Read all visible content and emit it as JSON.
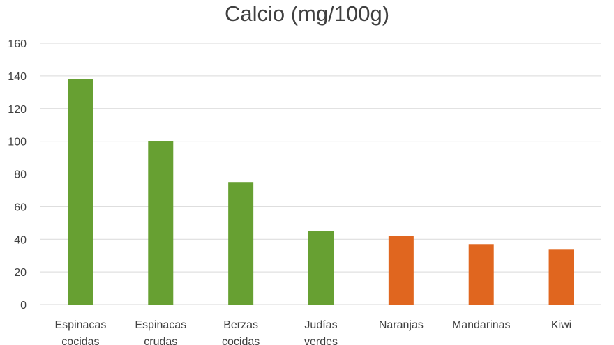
{
  "chart_data": {
    "type": "bar",
    "title": "Calcio (mg/100g)",
    "xlabel": "",
    "ylabel": "",
    "ylim": [
      0,
      160
    ],
    "yticks": [
      0,
      20,
      40,
      60,
      80,
      100,
      120,
      140,
      160
    ],
    "grid": true,
    "categories": [
      [
        "Espinacas",
        "cocidas"
      ],
      [
        "Espinacas",
        "crudas"
      ],
      [
        "Berzas",
        "cocidas"
      ],
      [
        "Judías",
        "verdes"
      ],
      [
        "Naranjas"
      ],
      [
        "Mandarinas"
      ],
      [
        "Kiwi"
      ]
    ],
    "values": [
      138,
      100,
      75,
      45,
      42,
      37,
      34
    ],
    "bar_colors": [
      "#67a032",
      "#67a032",
      "#67a032",
      "#67a032",
      "#e0661f",
      "#e0661f",
      "#e0661f"
    ],
    "gridline_color": "#d9d9d9"
  }
}
